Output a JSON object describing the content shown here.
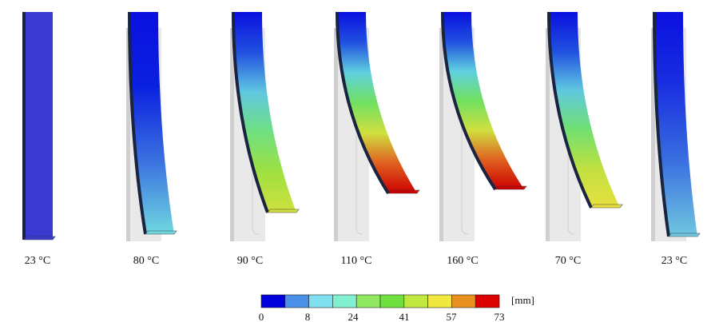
{
  "panels": [
    {
      "label": "23 °C"
    },
    {
      "label": "80 °C"
    },
    {
      "label": "90 °C"
    },
    {
      "label": "110 °C"
    },
    {
      "label": "160 °C"
    },
    {
      "label": "70 °C"
    },
    {
      "label": "23 °C"
    }
  ],
  "colorbar": {
    "unit": "[mm]",
    "ticks": [
      0,
      8,
      24,
      41,
      57,
      73
    ],
    "colors": [
      "#0000dd",
      "#4a90e8",
      "#80e0f0",
      "#80f0d0",
      "#90e860",
      "#70e040",
      "#c0e840",
      "#f0e840",
      "#e89020",
      "#dd0000"
    ]
  }
}
